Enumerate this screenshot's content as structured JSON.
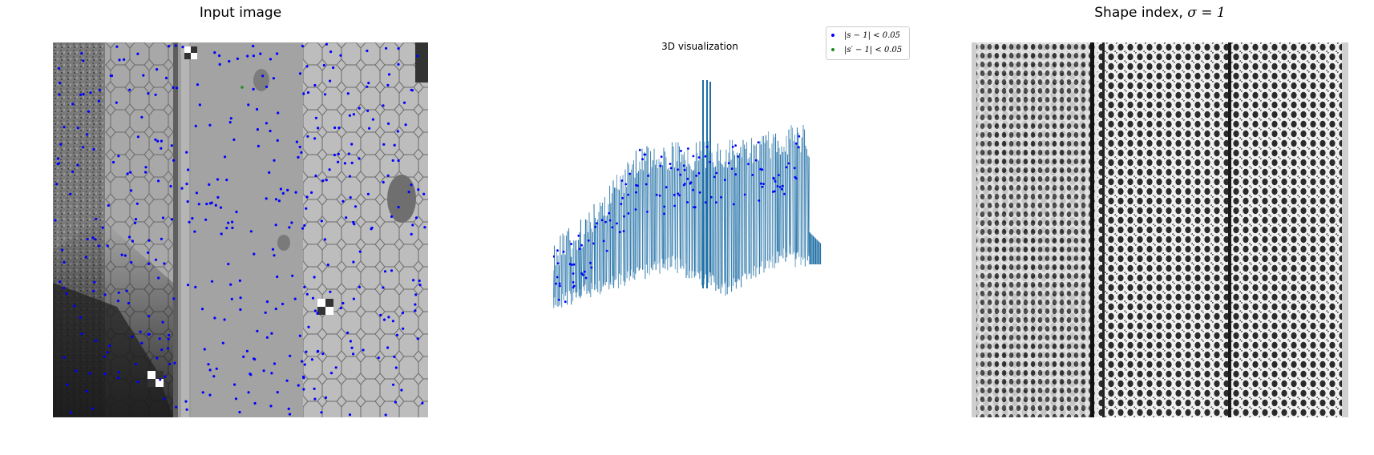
{
  "chart_data": [
    {
      "type": "image",
      "title": "Input image",
      "description_points_color": "#0000ff",
      "overlay_series": [
        {
          "marker_color": "#0000ff"
        },
        {
          "marker_color": "#228b22"
        }
      ]
    },
    {
      "type": "surface3d",
      "title": "3D visualization",
      "surface_color": "#1f6fa5",
      "legend_placement": "top-right",
      "series": [
        {
          "name": "|s − 1| < 0.05",
          "color": "#0000ff"
        },
        {
          "name": "|s′ − 1| < 0.05",
          "color": "#228b22"
        }
      ]
    },
    {
      "type": "image",
      "title_prefix": "Shape index, ",
      "title_math": "σ = 1"
    }
  ],
  "colors": {
    "blue_points": "#0000ff",
    "green_points": "#228b22",
    "surface": "#1f6fa5"
  }
}
